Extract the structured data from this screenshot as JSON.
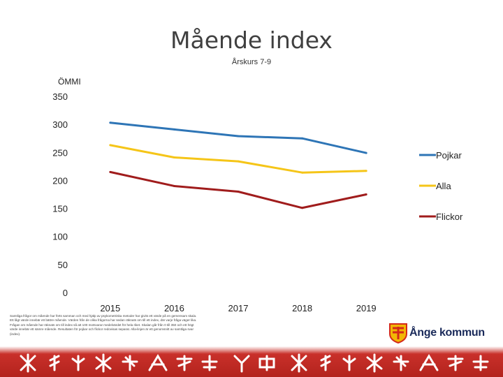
{
  "header": {
    "title": "Mående index",
    "subtitle": "Årskurs 7-9"
  },
  "footnote": {
    "text": "Samtliga frågor om mående har förts samman och med hjälp av psykometriska metoder har givits ett värde på en gemensam skala. Ett lågt värde innebär ett bättre mående. Värden från de olika frågorna har sedan räknats om till ett index, där varje fråga väger lika. Frågan om mående har räknats om till index så att 100 motsvarar medelvärdet för hela riket. Skalan går från 0 till 350 och ett högt värde innebär ett sämre mående. Resultaten för pojkar och flickor redovisas separat. Alla-linjen är ett genomsnitt av samtliga svar (index)."
  },
  "logo": {
    "name": "Ånge kommun",
    "color_red": "#d42a1a",
    "color_yellow": "#f2b705"
  },
  "chart_data": {
    "type": "line",
    "title": "Mående index",
    "subtitle": "Årskurs 7-9",
    "ylabel": "ÖMMI",
    "xlabel": "",
    "categories": [
      "2015",
      "2016",
      "2017",
      "2018",
      "2019"
    ],
    "ylim": [
      0,
      350
    ],
    "yticks": [
      0,
      50,
      100,
      150,
      200,
      250,
      300,
      350
    ],
    "grid": false,
    "legend": "right",
    "series": [
      {
        "name": "Pojkar",
        "color": "#2e75b6",
        "values": [
          303,
          291,
          279,
          275,
          249
        ]
      },
      {
        "name": "Alla",
        "color": "#f5c518",
        "values": [
          263,
          241,
          234,
          214,
          217
        ]
      },
      {
        "name": "Flickor",
        "color": "#a01c1c",
        "values": [
          215,
          190,
          180,
          151,
          175
        ]
      }
    ]
  }
}
